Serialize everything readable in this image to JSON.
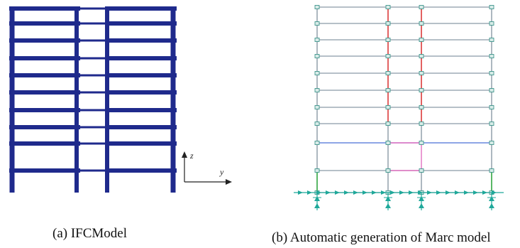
{
  "captions": {
    "left": "(a) IFCModel",
    "right": "(b) Automatic generation of Marc model"
  },
  "axes": {
    "vertical": "z",
    "horizontal": "y"
  },
  "ifc_model": {
    "floors": 10,
    "bays": 3,
    "color": "#1f2a8c"
  },
  "marc_model": {
    "floors": 10,
    "bays": 3,
    "colors": {
      "frame": "#8a9aa6",
      "red_column": "#e05050",
      "blue_beam": "#4a6fd8",
      "pink_beam": "#e070c0",
      "support": "#1fa89a",
      "green": "#3cb04a",
      "node": "#2a8a80"
    }
  }
}
